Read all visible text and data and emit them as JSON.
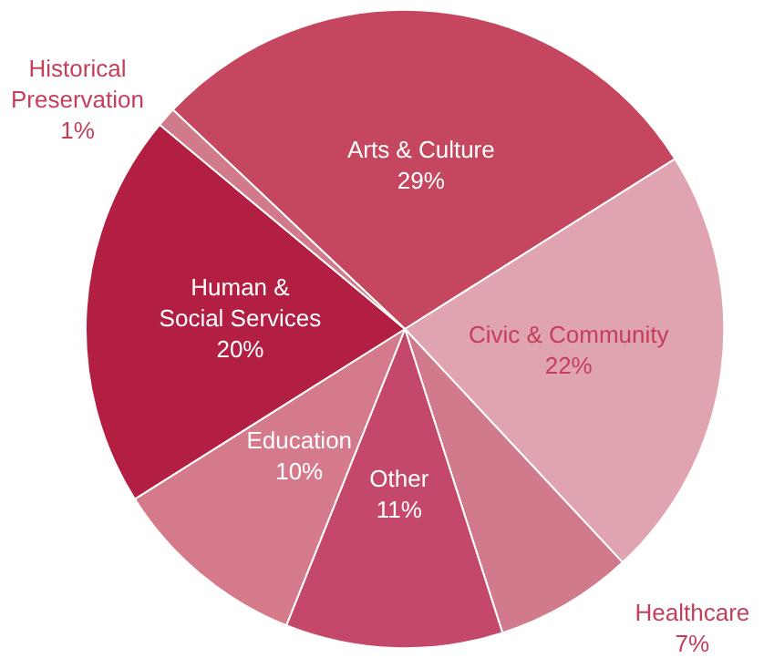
{
  "chart_data": {
    "type": "pie",
    "categories": [
      "Arts & Culture",
      "Civic & Community",
      "Healthcare",
      "Other",
      "Education",
      "Human &\nSocial Services",
      "Historical\nPreservation"
    ],
    "values": [
      29,
      22,
      7,
      11,
      10,
      20,
      1
    ],
    "value_labels": [
      "29%",
      "22%",
      "7%",
      "11%",
      "10%",
      "20%",
      "1%"
    ],
    "colors": [
      "#c4475f",
      "#e0a3b0",
      "#d17a8c",
      "#c4486a",
      "#d47a8b",
      "#b31f42",
      "#d17a8c"
    ]
  }
}
